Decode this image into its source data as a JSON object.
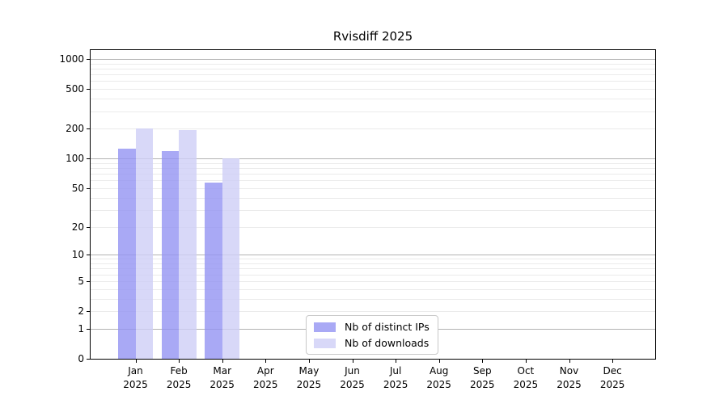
{
  "chart_data": {
    "type": "bar",
    "title": "Rvisdiff 2025",
    "x_months": [
      "Jan",
      "Feb",
      "Mar",
      "Apr",
      "May",
      "Jun",
      "Jul",
      "Aug",
      "Sep",
      "Oct",
      "Nov",
      "Dec"
    ],
    "x_year": "2025",
    "categories": [
      "Jan 2025",
      "Feb 2025",
      "Mar 2025",
      "Apr 2025",
      "May 2025",
      "Jun 2025",
      "Jul 2025",
      "Aug 2025",
      "Sep 2025",
      "Oct 2025",
      "Nov 2025",
      "Dec 2025"
    ],
    "series": [
      {
        "name": "Nb of distinct IPs",
        "color": "rgba(147,147,243,0.8)",
        "values": [
          126,
          118,
          57,
          0,
          0,
          0,
          0,
          0,
          0,
          0,
          0,
          0
        ]
      },
      {
        "name": "Nb of downloads",
        "color": "rgba(206,206,246,0.8)",
        "values": [
          199,
          195,
          100,
          0,
          0,
          0,
          0,
          0,
          0,
          0,
          0,
          0
        ]
      }
    ],
    "y_axis": {
      "scale": "log10(1+x)",
      "ticks": [
        1000,
        500,
        200,
        100,
        50,
        20,
        10,
        5,
        2,
        1,
        0
      ],
      "ylim": [
        0,
        1260
      ]
    },
    "grid": {
      "on": true,
      "major_at": [
        1,
        10,
        100,
        1000
      ],
      "minor_decades": [
        1,
        10,
        100
      ],
      "major_color": "#b3b3b3",
      "minor_color": "#ebebeb"
    },
    "legend": {
      "position": "lower center"
    }
  }
}
